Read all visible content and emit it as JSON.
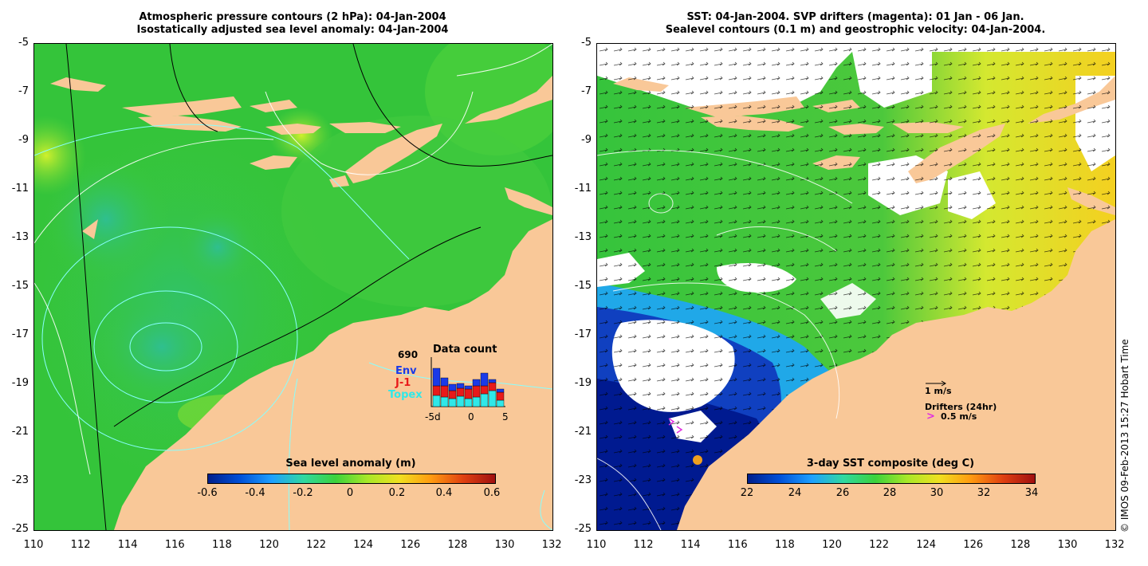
{
  "left": {
    "title_line1": "Atmospheric pressure contours (2 hPa): 04-Jan-2004",
    "title_line2": "Isostatically adjusted sea level anomaly: 04-Jan-2004",
    "colorbar_title": "Sea level anomaly (m)",
    "colorbar_ticks": [
      "-0.6",
      "-0.4",
      "-0.2",
      "0",
      "0.2",
      "0.4",
      "0.6"
    ],
    "count_total": "690",
    "count_title": "Data count",
    "env_label": "Env",
    "j1_label": "J-1",
    "topex_label": "Topex",
    "count_x_labels": [
      "-5d",
      "0",
      "5"
    ],
    "count_bars": [
      {
        "topex": 14,
        "j1": 12,
        "env": 22
      },
      {
        "topex": 12,
        "j1": 14,
        "env": 10
      },
      {
        "topex": 10,
        "j1": 10,
        "env": 8
      },
      {
        "topex": 13,
        "j1": 10,
        "env": 6
      },
      {
        "topex": 10,
        "j1": 12,
        "env": 4
      },
      {
        "topex": 12,
        "j1": 14,
        "env": 8
      },
      {
        "topex": 16,
        "j1": 10,
        "env": 16
      },
      {
        "topex": 20,
        "j1": 10,
        "env": 4
      },
      {
        "topex": 8,
        "j1": 10,
        "env": 4
      }
    ]
  },
  "right": {
    "title_line1": "SST: 04-Jan-2004. SVP drifters (magenta): 01 Jan - 06 Jan.",
    "title_line2": "Sealevel contours (0.1 m) and geostrophic velocity: 04-Jan-2004.",
    "colorbar_title": "3-day SST composite (deg C)",
    "colorbar_ticks": [
      "22",
      "24",
      "26",
      "28",
      "30",
      "32",
      "34"
    ],
    "vel_label": "1 m/s",
    "drifters_label": "Drifters (24hr)",
    "drifter_speed": "0.5 m/s",
    "side_note": "© IMOS 09-Feb-2013 15:27 Hobart Time"
  },
  "y_ticks": [
    "-5",
    "-7",
    "-9",
    "-11",
    "-13",
    "-15",
    "-17",
    "-19",
    "-21",
    "-23",
    "-25"
  ],
  "x_ticks": [
    "110",
    "112",
    "114",
    "116",
    "118",
    "120",
    "122",
    "124",
    "126",
    "128",
    "130",
    "132"
  ],
  "colors": {
    "land": "#f9c898",
    "ocean_left": "#3cc83c",
    "cloud": "#ffffff",
    "contour": "#88ffff"
  }
}
